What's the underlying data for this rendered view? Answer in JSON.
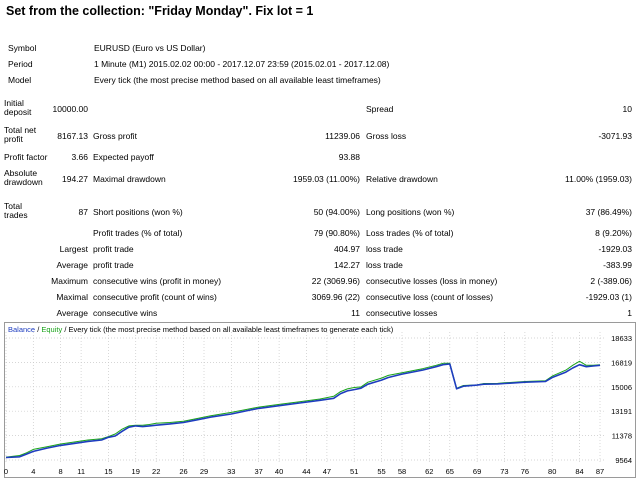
{
  "title": "Set from the collection: \"Friday Monday\".   Fix lot = 1",
  "info": {
    "symbol_label": "Symbol",
    "symbol_value": "EURUSD (Euro vs US Dollar)",
    "period_label": "Period",
    "period_value": "1 Minute (M1) 2015.02.02 00:00 - 2017.12.07 23:59 (2015.02.01 - 2017.12.08)",
    "model_label": "Model",
    "model_value": "Every tick (the most precise method based on all available least timeframes)"
  },
  "stats": {
    "initial_deposit_label": "Initial deposit",
    "initial_deposit": "10000.00",
    "spread_label": "Spread",
    "spread": "10",
    "total_net_profit_label": "Total net profit",
    "total_net_profit": "8167.13",
    "gross_profit_label": "Gross profit",
    "gross_profit": "11239.06",
    "gross_loss_label": "Gross loss",
    "gross_loss": "-3071.93",
    "profit_factor_label": "Profit factor",
    "profit_factor": "3.66",
    "expected_payoff_label": "Expected payoff",
    "expected_payoff": "93.88",
    "absolute_drawdown_label": "Absolute drawdown",
    "absolute_drawdown": "194.27",
    "maximal_drawdown_label": "Maximal drawdown",
    "maximal_drawdown": "1959.03 (11.00%)",
    "relative_drawdown_label": "Relative drawdown",
    "relative_drawdown": "11.00% (1959.03)",
    "total_trades_label": "Total trades",
    "total_trades": "87",
    "short_positions_label": "Short positions (won %)",
    "short_positions": "50 (94.00%)",
    "long_positions_label": "Long positions (won %)",
    "long_positions": "37 (86.49%)",
    "profit_trades_label": "Profit trades (% of total)",
    "profit_trades": "79 (90.80%)",
    "loss_trades_label": "Loss trades (% of total)",
    "loss_trades": "8 (9.20%)",
    "largest_label": "Largest",
    "largest_profit_label": "profit trade",
    "largest_profit": "404.97",
    "largest_loss_label": "loss trade",
    "largest_loss": "-1929.03",
    "average_label": "Average",
    "average_profit_label": "profit trade",
    "average_profit": "142.27",
    "average_loss_label": "loss trade",
    "average_loss": "-383.99",
    "maximum_label": "Maximum",
    "max_cons_wins_label": "consecutive wins (profit in money)",
    "max_cons_wins": "22 (3069.96)",
    "max_cons_losses_label": "consecutive losses (loss in money)",
    "max_cons_losses": "2 (-389.06)",
    "maximal_label": "Maximal",
    "maximal_cons_profit_label": "consecutive profit (count of wins)",
    "maximal_cons_profit": "3069.96 (22)",
    "maximal_cons_loss_label": "consecutive loss (count of losses)",
    "maximal_cons_loss": "-1929.03 (1)",
    "average2_label": "Average",
    "avg_cons_wins_label": "consecutive wins",
    "avg_cons_wins": "11",
    "avg_cons_losses_label": "consecutive losses",
    "avg_cons_losses": "1"
  },
  "legend": {
    "balance": "Balance",
    "sep1": " / ",
    "equity": "Equity",
    "sep2": " / ",
    "rest": "Every tick (the most precise method based on all available least timeframes to generate each tick)"
  },
  "colors": {
    "balance": "#1e3dbf",
    "equity": "#1aa31a",
    "grid": "#c8c8c8"
  },
  "chart_data": {
    "type": "line",
    "title": "",
    "xlabel": "",
    "ylabel": "",
    "x_ticks": [
      "0",
      "4",
      "8",
      "11",
      "15",
      "19",
      "22",
      "26",
      "29",
      "33",
      "37",
      "40",
      "44",
      "47",
      "51",
      "55",
      "58",
      "62",
      "65",
      "69",
      "73",
      "76",
      "80",
      "84",
      "87"
    ],
    "y_ticks": [
      "18633",
      "16819",
      "15006",
      "13191",
      "11378",
      "9564"
    ],
    "xlim": [
      0,
      87
    ],
    "ylim": [
      9564,
      18633
    ],
    "series": [
      {
        "name": "Balance",
        "x": [
          0,
          2,
          3,
          4,
          6,
          8,
          10,
          12,
          14,
          15,
          16,
          17,
          18,
          19,
          20,
          21,
          22,
          24,
          26,
          28,
          30,
          33,
          35,
          37,
          40,
          43,
          46,
          48,
          49,
          50,
          51,
          52,
          53,
          55,
          56,
          58,
          61,
          63,
          64,
          65,
          66,
          67,
          69,
          70,
          72,
          73,
          76,
          79,
          80,
          82,
          83,
          84,
          85,
          86,
          87
        ],
        "y": [
          9750,
          9800,
          10000,
          10200,
          10450,
          10650,
          10800,
          10950,
          11050,
          11250,
          11350,
          11700,
          12000,
          12100,
          12050,
          12100,
          12150,
          12250,
          12350,
          12550,
          12750,
          12980,
          13200,
          13400,
          13600,
          13800,
          14000,
          14150,
          14500,
          14700,
          14800,
          14900,
          15200,
          15500,
          15700,
          15950,
          16250,
          16500,
          16650,
          16700,
          14860,
          15050,
          15130,
          15200,
          15220,
          15250,
          15350,
          15400,
          15700,
          16100,
          16400,
          16650,
          16500,
          16550,
          16600
        ]
      },
      {
        "name": "Equity",
        "x": [
          0,
          2,
          3,
          4,
          6,
          8,
          10,
          12,
          14,
          15,
          16,
          17,
          18,
          19,
          20,
          21,
          22,
          24,
          26,
          28,
          30,
          33,
          35,
          37,
          40,
          43,
          46,
          48,
          49,
          50,
          51,
          52,
          53,
          55,
          56,
          58,
          61,
          63,
          64,
          65,
          66,
          67,
          69,
          70,
          72,
          73,
          76,
          79,
          80,
          82,
          83,
          84,
          85,
          86,
          87
        ],
        "y": [
          9780,
          9900,
          10100,
          10350,
          10550,
          10750,
          10900,
          11050,
          11150,
          11300,
          11500,
          11850,
          12100,
          12150,
          12150,
          12200,
          12300,
          12350,
          12450,
          12650,
          12850,
          13100,
          13300,
          13500,
          13700,
          13900,
          14100,
          14300,
          14650,
          14850,
          14950,
          15000,
          15350,
          15650,
          15850,
          16050,
          16350,
          16600,
          16750,
          16750,
          14900,
          15100,
          15150,
          15250,
          15260,
          15300,
          15400,
          15450,
          15800,
          16250,
          16600,
          16900,
          16600,
          16600,
          16650
        ]
      }
    ]
  }
}
